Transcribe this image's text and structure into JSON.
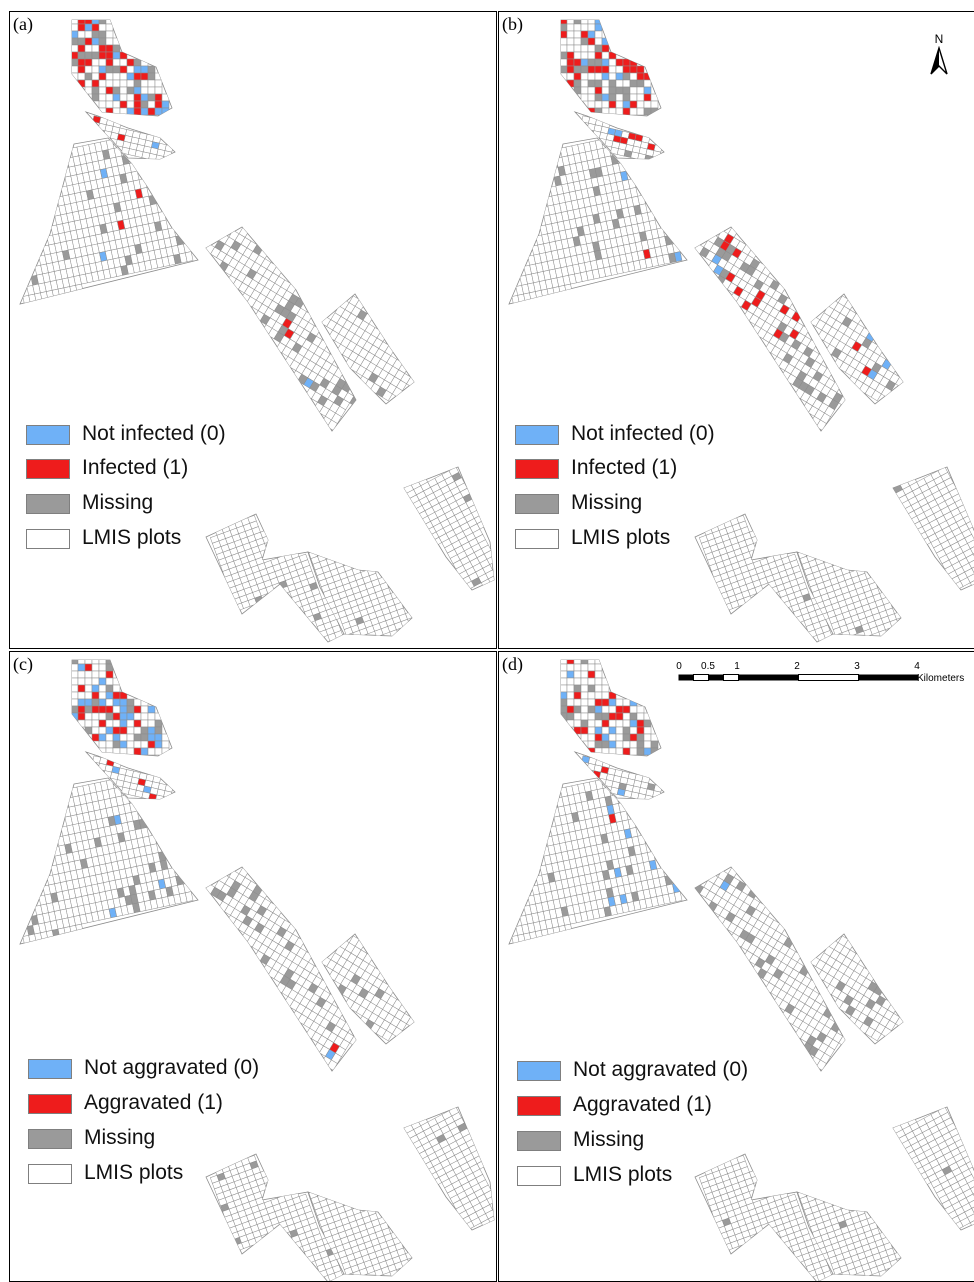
{
  "panels": [
    {
      "letter": "(a)",
      "scheme": "infection",
      "legend": [
        {
          "label": "Not infected (0)",
          "color": "#6fb1f7"
        },
        {
          "label": "Infected (1)",
          "color": "#ee1c1c"
        },
        {
          "label": "Missing",
          "color": "#9a9a9a"
        },
        {
          "label": "LMIS plots",
          "color": "#ffffff"
        }
      ]
    },
    {
      "letter": "(b)",
      "scheme": "infection",
      "legend": [
        {
          "label": "Not infected (0)",
          "color": "#6fb1f7"
        },
        {
          "label": "Infected (1)",
          "color": "#ee1c1c"
        },
        {
          "label": "Missing",
          "color": "#9a9a9a"
        },
        {
          "label": "LMIS plots",
          "color": "#ffffff"
        }
      ]
    },
    {
      "letter": "(c)",
      "scheme": "aggravation",
      "legend": [
        {
          "label": "Not aggravated (0)",
          "color": "#6fb1f7"
        },
        {
          "label": "Aggravated (1)",
          "color": "#ee1c1c"
        },
        {
          "label": "Missing",
          "color": "#9a9a9a"
        },
        {
          "label": "LMIS plots",
          "color": "#ffffff"
        }
      ]
    },
    {
      "letter": "(d)",
      "scheme": "aggravation",
      "legend": [
        {
          "label": "Not aggravated (0)",
          "color": "#6fb1f7"
        },
        {
          "label": "Aggravated (1)",
          "color": "#ee1c1c"
        },
        {
          "label": "Missing",
          "color": "#9a9a9a"
        },
        {
          "label": "LMIS plots",
          "color": "#ffffff"
        }
      ]
    }
  ],
  "north_arrow": {
    "letter": "N",
    "icon": "north-arrow-icon"
  },
  "scale_bar": {
    "ticks": [
      "0",
      "0.5",
      "1",
      "2",
      "3",
      "4"
    ],
    "unit": "Kilometers"
  },
  "colors": {
    "plot_fill": "#ffffff",
    "plot_stroke": "#8c8c8c",
    "not_positive": "#6fb1f7",
    "positive": "#ee1c1c",
    "missing": "#9a9a9a"
  }
}
